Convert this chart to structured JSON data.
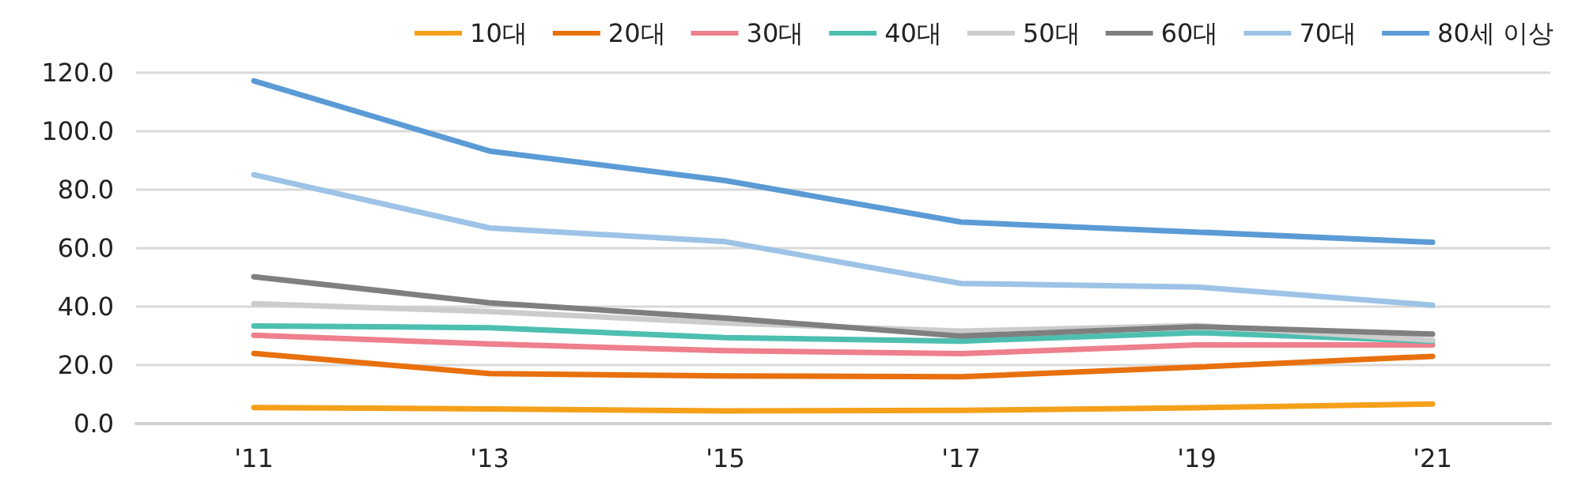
{
  "chart_data": {
    "type": "line",
    "categories": [
      "'11",
      "'13",
      "'15",
      "'17",
      "'19",
      "'21"
    ],
    "series": [
      {
        "name": "10대",
        "color": "#f5a01a",
        "values": [
          5.5,
          5.0,
          4.3,
          4.5,
          5.4,
          6.7
        ]
      },
      {
        "name": "20대",
        "color": "#e8700e",
        "values": [
          24.0,
          17.1,
          16.3,
          16.0,
          19.3,
          23.0
        ]
      },
      {
        "name": "30대",
        "color": "#ee7f8c",
        "values": [
          30.2,
          27.2,
          24.9,
          23.9,
          26.9,
          26.9
        ]
      },
      {
        "name": "40대",
        "color": "#4dbfb0",
        "values": [
          33.4,
          32.8,
          29.4,
          28.2,
          31.1,
          28.2
        ]
      },
      {
        "name": "50대",
        "color": "#cccccc",
        "values": [
          41.0,
          38.3,
          34.4,
          31.6,
          33.5,
          28.5
        ]
      },
      {
        "name": "60대",
        "color": "#7f7f7f",
        "values": [
          50.2,
          41.3,
          36.1,
          29.9,
          33.1,
          30.6
        ]
      },
      {
        "name": "70대",
        "color": "#9dc3e6",
        "values": [
          85.1,
          66.9,
          62.2,
          47.9,
          46.7,
          40.5
        ]
      },
      {
        "name": "80세 이상",
        "color": "#5b9bd5",
        "values": [
          117.2,
          93.2,
          83.1,
          68.9,
          65.5,
          62.0
        ]
      }
    ],
    "ylim": [
      0,
      120
    ],
    "yticks": [
      {
        "value": 0,
        "label": "0.0"
      },
      {
        "value": 20,
        "label": "20.0"
      },
      {
        "value": 40,
        "label": "40.0"
      },
      {
        "value": 60,
        "label": "60.0"
      },
      {
        "value": 80,
        "label": "80.0"
      },
      {
        "value": 100,
        "label": "100.0"
      },
      {
        "value": 120,
        "label": "120.0"
      }
    ],
    "grid": "y",
    "legend": "top",
    "marker": "none",
    "line_style": "solid"
  }
}
